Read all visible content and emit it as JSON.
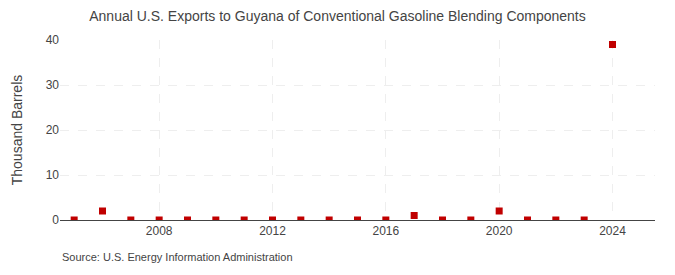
{
  "chart_data": {
    "type": "scatter",
    "title": "Annual U.S. Exports to Guyana of Conventional Gasoline Blending Components",
    "ylabel": "Thousand Barrels",
    "annotations": [
      "Source: U.S. Energy Information Administration"
    ],
    "x": [
      2005,
      2006,
      2007,
      2008,
      2009,
      2010,
      2011,
      2012,
      2013,
      2014,
      2015,
      2016,
      2017,
      2018,
      2019,
      2020,
      2021,
      2022,
      2023,
      2024
    ],
    "values": [
      0,
      2,
      0,
      0,
      0,
      0,
      0,
      0,
      0,
      0,
      0,
      0,
      1,
      0,
      0,
      2,
      0,
      0,
      0,
      39
    ],
    "color": "#c00000",
    "marker": "square",
    "xlim": [
      2004.5,
      2025.5
    ],
    "ylim": [
      0,
      40
    ],
    "xticks": [
      2008,
      2012,
      2016,
      2020,
      2024
    ],
    "yticks": [
      0,
      10,
      20,
      30,
      40
    ],
    "grid": true
  }
}
